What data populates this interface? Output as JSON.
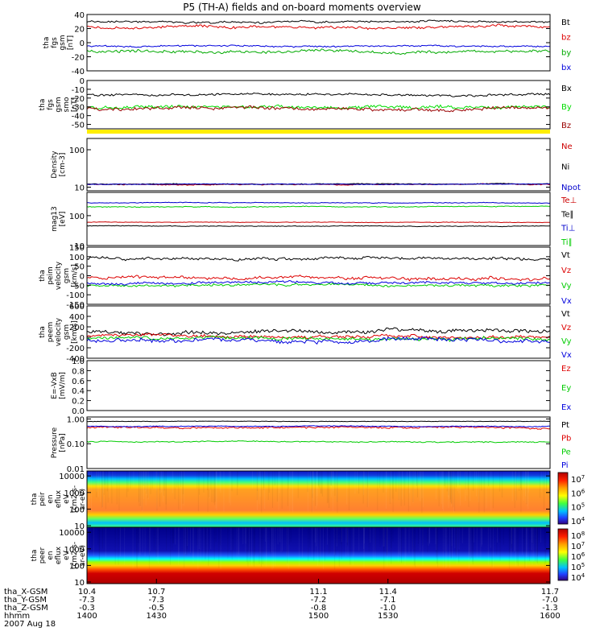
{
  "chart_data": {
    "type": "line",
    "title": "P5 (TH-A) fields and on-board moments overview",
    "x_ticks": [
      {
        "x": 1400,
        "x_gsm": "10.4",
        "y_gsm": "-7.3",
        "z_gsm": "-0.3",
        "hhmm": "1400"
      },
      {
        "x": 1430,
        "x_gsm": "10.7",
        "y_gsm": "-7.3",
        "z_gsm": "-0.5",
        "hhmm": "1430"
      },
      {
        "x": 1500,
        "x_gsm": "11.1",
        "y_gsm": "-7.2",
        "z_gsm": "-0.8",
        "hhmm": "1500"
      },
      {
        "x": 1530,
        "x_gsm": "11.4",
        "y_gsm": "-7.1",
        "z_gsm": "-1.0",
        "hhmm": "1530"
      },
      {
        "x": 1600,
        "x_gsm": "11.7",
        "y_gsm": "-7.0",
        "z_gsm": "-1.3",
        "hhmm": "1600"
      }
    ],
    "x_row_labels": [
      "tha_X-GSM",
      "tha_Y-GSM",
      "tha_Z-GSM",
      "hhmm"
    ],
    "date": "2007 Aug 18",
    "panels": [
      {
        "id": "fgs",
        "scale": "linear",
        "ylim": [
          -40,
          40
        ],
        "ylabel": [
          "tha",
          "fgs",
          "gsm",
          "[nT]"
        ],
        "ticks": [
          "40",
          "20",
          "0",
          "-20",
          "-40"
        ],
        "series": [
          {
            "name": "Bt",
            "color": "#000000",
            "mean": 30,
            "noise": 2.2
          },
          {
            "name": "bz",
            "color": "#dd0000",
            "mean": 22,
            "noise": 3.0
          },
          {
            "name": "by",
            "color": "#00aa00",
            "mean": -12,
            "noise": 3.2
          },
          {
            "name": "bx",
            "color": "#0000dd",
            "mean": -5,
            "noise": 1.8
          }
        ]
      },
      {
        "id": "fgs-smo",
        "scale": "linear",
        "ylim": [
          -55,
          0
        ],
        "ylabel": [
          "tha",
          "fgs",
          "gsm",
          "smo",
          "[nT]"
        ],
        "ticks": [
          "0",
          "-10",
          "-20",
          "-30",
          "-40",
          "-50"
        ],
        "series": [
          {
            "name": "Bx",
            "color": "#000000",
            "mean": -16,
            "noise": 2.0
          },
          {
            "name": "By",
            "color": "#00dd00",
            "mean": -30,
            "noise": 3.0
          },
          {
            "name": "Bz",
            "color": "#990000",
            "mean": -32,
            "noise": 3.0
          }
        ]
      },
      {
        "id": "density",
        "scale": "log",
        "ylim": [
          8,
          200
        ],
        "ylabel": [
          "Density",
          "[cm-3]"
        ],
        "ticks": [
          "100",
          "10"
        ],
        "series": [
          {
            "name": "Ne",
            "color": "#cc0000",
            "mean": 12,
            "noise": 0.6
          },
          {
            "name": "Ni",
            "color": "#000000",
            "mean": 12,
            "noise": 0.5
          },
          {
            "name": "Npot",
            "color": "#0000cc",
            "mean": 12,
            "noise": 0.4
          }
        ]
      },
      {
        "id": "temperature",
        "scale": "log",
        "ylim": [
          10,
          600
        ],
        "ylabel": [
          "mag13",
          "[eV]"
        ],
        "ticks": [
          "100",
          "10"
        ],
        "series": [
          {
            "name": "Te⊥",
            "color": "#cc0000",
            "mean": 60,
            "noise": 2
          },
          {
            "name": "Te∥",
            "color": "#000000",
            "mean": 45,
            "noise": 2
          },
          {
            "name": "Ti⊥",
            "color": "#0000cc",
            "mean": 270,
            "noise": 12
          },
          {
            "name": "Ti∥",
            "color": "#00cc00",
            "mean": 200,
            "noise": 10
          }
        ]
      },
      {
        "id": "peim-velocity",
        "scale": "linear",
        "ylim": [
          -150,
          150
        ],
        "ylabel": [
          "tha",
          "peim",
          "velocity",
          "gsm",
          "[km/s]"
        ],
        "ticks": [
          "150",
          "100",
          "50",
          "0",
          "-50",
          "-100",
          "-150"
        ],
        "series": [
          {
            "name": "Vt",
            "color": "#000000",
            "mean": 90,
            "noise": 12
          },
          {
            "name": "Vz",
            "color": "#dd0000",
            "mean": -10,
            "noise": 14
          },
          {
            "name": "Vy",
            "color": "#00cc00",
            "mean": -50,
            "noise": 10
          },
          {
            "name": "Vx",
            "color": "#0000dd",
            "mean": -40,
            "noise": 10
          }
        ]
      },
      {
        "id": "peem-velocity",
        "scale": "linear",
        "ylim": [
          -400,
          600
        ],
        "ylabel": [
          "tha",
          "peem",
          "velocity",
          "gsm",
          "[km/s]"
        ],
        "ticks": [
          "600",
          "400",
          "200",
          "0",
          "-200",
          "-400"
        ],
        "series": [
          {
            "name": "Vt",
            "color": "#000000",
            "mean": 100,
            "noise": 60
          },
          {
            "name": "Vz",
            "color": "#dd0000",
            "mean": 20,
            "noise": 50
          },
          {
            "name": "Vy",
            "color": "#00cc00",
            "mean": -20,
            "noise": 50
          },
          {
            "name": "Vx",
            "color": "#0000dd",
            "mean": -60,
            "noise": 60
          }
        ]
      },
      {
        "id": "efield",
        "scale": "linear",
        "ylim": [
          0,
          1
        ],
        "ylabel": [
          "E=-VxB",
          "[mV/m]"
        ],
        "ticks": [
          "1.0",
          "0.8",
          "0.6",
          "0.4",
          "0.2",
          "0.0"
        ],
        "series": [
          {
            "name": "Ez",
            "color": "#dd0000",
            "mean": null,
            "noise": 0
          },
          {
            "name": "Ey",
            "color": "#00cc00",
            "mean": null,
            "noise": 0
          },
          {
            "name": "Ex",
            "color": "#0000dd",
            "mean": null,
            "noise": 0
          }
        ]
      },
      {
        "id": "pressure",
        "scale": "log",
        "ylim": [
          0.01,
          1.2
        ],
        "ylabel": [
          "Pressure",
          "[nPa]"
        ],
        "ticks": [
          "1.00",
          "0.10",
          "0.01"
        ],
        "series": [
          {
            "name": "Pt",
            "color": "#000000",
            "mean": 0.8,
            "noise": 0.03
          },
          {
            "name": "Pb",
            "color": "#dd0000",
            "mean": 0.45,
            "noise": 0.06
          },
          {
            "name": "Pe",
            "color": "#00cc00",
            "mean": 0.12,
            "noise": 0.01
          },
          {
            "name": "Pi",
            "color": "#0000dd",
            "mean": 0.5,
            "noise": 0.03
          }
        ]
      },
      {
        "id": "peir",
        "scale": "log",
        "ylim": [
          8,
          20000
        ],
        "ylabel": [
          "tha",
          "peir",
          "en",
          "eflux",
          "eV",
          "(cm2-s-",
          "sr-eV)"
        ],
        "ticks": [
          "10000",
          "1000",
          "100",
          "10"
        ],
        "spectrogram": true,
        "colorbar_ticks": [
          "10^7",
          "10^6",
          "10^5",
          "10^4"
        ]
      },
      {
        "id": "peer",
        "scale": "log",
        "ylim": [
          8,
          20000
        ],
        "ylabel": [
          "tha",
          "peer",
          "en",
          "eflux",
          "eV",
          "(cm2-s-",
          "sr-eV)"
        ],
        "ticks": [
          "10000",
          "1000",
          "100",
          "10"
        ],
        "spectrogram": true,
        "colorbar_ticks": [
          "10^8",
          "10^7",
          "10^6",
          "10^5",
          "10^4"
        ]
      }
    ]
  }
}
